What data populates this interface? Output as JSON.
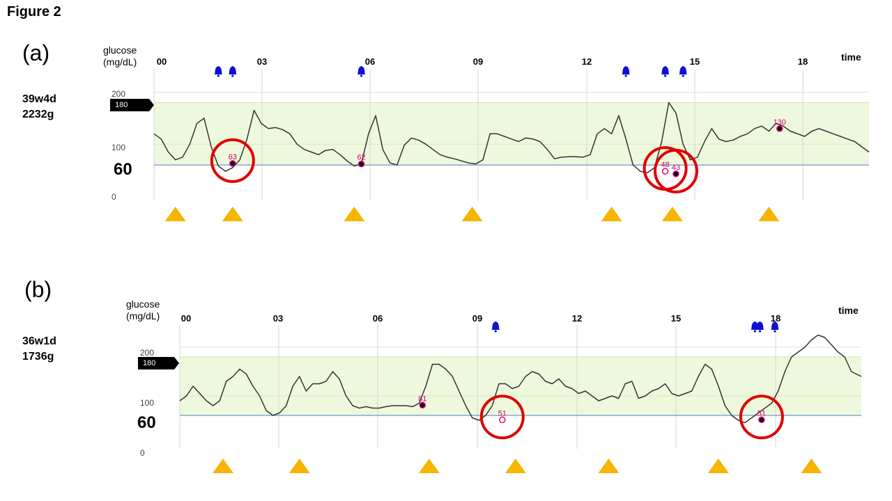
{
  "figure": {
    "title": "Figure 2"
  },
  "chart_data": [
    {
      "type": "line",
      "panel_label": "(a)",
      "subject": "39w4d\n2232g",
      "ylabel": "glucose\n(mg/dL)",
      "xlabel": "time",
      "x_ticks": [
        "00",
        "03",
        "06",
        "09",
        "12",
        "15",
        "18"
      ],
      "y_ticks": [
        "200",
        "100",
        "0"
      ],
      "ylim": [
        0,
        210
      ],
      "xlim": [
        0,
        20
      ],
      "target_range": {
        "low": 60,
        "high": 180,
        "label": "180"
      },
      "threshold_label": "60",
      "series": [
        {
          "x": [
            0,
            0.2,
            0.4,
            0.6,
            0.8,
            1.0,
            1.2,
            1.4,
            1.6,
            1.8,
            2.0,
            2.2,
            2.4,
            2.6,
            2.8,
            3.0,
            3.2,
            3.4,
            3.6,
            3.8,
            4.0,
            4.2,
            4.4,
            4.6,
            4.8,
            5.0,
            5.2,
            5.4,
            5.6,
            5.8,
            6.0,
            6.2,
            6.4,
            6.6,
            6.8,
            7.0,
            7.2,
            7.4,
            7.6,
            7.8,
            8.0,
            8.2,
            8.4,
            8.6,
            8.8,
            9.0,
            9.2,
            9.4,
            9.6,
            9.8,
            10.0,
            10.2,
            10.4,
            10.6,
            10.8,
            11.0,
            11.2,
            11.4,
            11.6,
            11.8,
            12.0,
            12.2,
            12.4,
            12.6,
            12.8,
            13.0,
            13.2,
            13.4,
            13.6,
            13.8,
            14.0,
            14.2,
            14.4,
            14.6,
            14.8,
            15.0,
            15.2,
            15.4,
            15.6,
            15.8,
            16.0,
            16.2,
            16.4,
            16.6,
            16.8,
            17.0,
            17.2,
            17.4,
            17.6,
            17.8,
            18.0,
            18.2,
            18.4,
            18.6,
            18.8,
            19.0,
            19.2,
            19.4,
            19.6,
            19.8,
            20.0
          ],
          "y": [
            120,
            110,
            85,
            70,
            75,
            100,
            140,
            150,
            95,
            58,
            48,
            55,
            70,
            110,
            165,
            140,
            130,
            132,
            128,
            120,
            100,
            90,
            85,
            80,
            88,
            90,
            80,
            68,
            58,
            62,
            120,
            155,
            90,
            64,
            60,
            98,
            112,
            108,
            100,
            90,
            80,
            75,
            72,
            68,
            64,
            62,
            70,
            120,
            120,
            115,
            110,
            105,
            112,
            110,
            105,
            90,
            72,
            75,
            76,
            76,
            75,
            80,
            120,
            130,
            120,
            155,
            110,
            60,
            48,
            45,
            55,
            105,
            180,
            160,
            100,
            70,
            75,
            105,
            130,
            110,
            105,
            108,
            115,
            120,
            130,
            135,
            125,
            140,
            135,
            125,
            120,
            115,
            125,
            130,
            125,
            120,
            115,
            110,
            105,
            95,
            85
          ]
        }
      ],
      "points": [
        {
          "x": 2.2,
          "y": 63,
          "label": "63",
          "style": "filled",
          "circled": true
        },
        {
          "x": 5.8,
          "y": 62,
          "label": "62",
          "style": "filled",
          "circled": false
        },
        {
          "x": 14.3,
          "y": 48,
          "label": "48",
          "style": "hollow",
          "circled": true
        },
        {
          "x": 14.6,
          "y": 43,
          "label": "43",
          "style": "filled",
          "circled": true
        },
        {
          "x": 17.5,
          "y": 130,
          "label": "130",
          "style": "filled",
          "circled": false
        }
      ],
      "alarm_times": [
        1.8,
        2.2,
        5.8,
        13.2,
        14.3,
        14.8
      ],
      "meal_times": [
        0.6,
        2.2,
        5.6,
        8.9,
        12.8,
        14.5,
        17.2
      ]
    },
    {
      "type": "line",
      "panel_label": "(b)",
      "subject": "36w1d\n1736g",
      "ylabel": "glucose\n(mg/dL)",
      "xlabel": "time",
      "x_ticks": [
        "00",
        "03",
        "06",
        "09",
        "12",
        "15",
        "18"
      ],
      "y_ticks": [
        "200",
        "100",
        "0"
      ],
      "ylim": [
        0,
        210
      ],
      "xlim": [
        0,
        20.5
      ],
      "target_range": {
        "low": 60,
        "high": 180,
        "label": "180"
      },
      "threshold_label": "60",
      "series": [
        {
          "x": [
            0,
            0.2,
            0.4,
            0.6,
            0.8,
            1.0,
            1.2,
            1.4,
            1.6,
            1.8,
            2.0,
            2.2,
            2.4,
            2.6,
            2.8,
            3.0,
            3.2,
            3.4,
            3.6,
            3.8,
            4.0,
            4.2,
            4.4,
            4.6,
            4.8,
            5.0,
            5.2,
            5.4,
            5.6,
            5.8,
            6.0,
            6.2,
            6.4,
            6.6,
            6.8,
            7.0,
            7.2,
            7.4,
            7.6,
            7.8,
            8.0,
            8.2,
            8.4,
            8.6,
            8.8,
            9.0,
            9.2,
            9.4,
            9.6,
            9.8,
            10.0,
            10.2,
            10.4,
            10.6,
            10.8,
            11.0,
            11.2,
            11.4,
            11.6,
            11.8,
            12.0,
            12.2,
            12.4,
            12.6,
            12.8,
            13.0,
            13.2,
            13.4,
            13.6,
            13.8,
            14.0,
            14.2,
            14.4,
            14.6,
            14.8,
            15.0,
            15.2,
            15.4,
            15.6,
            15.8,
            16.0,
            16.2,
            16.4,
            16.6,
            16.8,
            17.0,
            17.2,
            17.4,
            17.6,
            17.8,
            18.0,
            18.2,
            18.4,
            18.6,
            18.8,
            19.0,
            19.2,
            19.4,
            19.6,
            19.8,
            20.0,
            20.2,
            20.5
          ],
          "y": [
            90,
            100,
            120,
            105,
            90,
            80,
            90,
            130,
            140,
            155,
            145,
            120,
            100,
            70,
            60,
            65,
            80,
            120,
            140,
            110,
            125,
            125,
            130,
            150,
            135,
            100,
            80,
            75,
            78,
            75,
            75,
            78,
            80,
            80,
            80,
            78,
            85,
            120,
            165,
            165,
            155,
            140,
            110,
            80,
            55,
            50,
            60,
            80,
            125,
            125,
            115,
            120,
            140,
            150,
            145,
            130,
            125,
            135,
            120,
            115,
            105,
            110,
            100,
            90,
            95,
            100,
            95,
            125,
            130,
            95,
            100,
            110,
            115,
            125,
            105,
            100,
            105,
            110,
            140,
            165,
            155,
            120,
            80,
            60,
            50,
            45,
            55,
            65,
            75,
            85,
            110,
            150,
            180,
            190,
            200,
            215,
            225,
            220,
            205,
            190,
            180,
            150,
            140
          ]
        }
      ],
      "points": [
        {
          "x": 7.3,
          "y": 81,
          "label": "81",
          "style": "filled",
          "circled": false
        },
        {
          "x": 9.7,
          "y": 51,
          "label": "51",
          "style": "hollow",
          "circled": true
        },
        {
          "x": 17.5,
          "y": 51,
          "label": "51",
          "style": "filled",
          "circled": true
        }
      ],
      "alarm_times": [
        9.5,
        17.3,
        17.45,
        17.9
      ],
      "meal_times": [
        1.3,
        3.6,
        7.5,
        10.1,
        12.9,
        16.2,
        19.0
      ]
    }
  ]
}
